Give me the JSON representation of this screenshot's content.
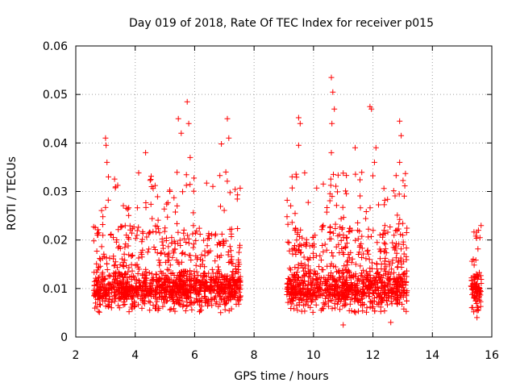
{
  "chart_data": {
    "type": "scatter",
    "title": "Day 019 of 2018, Rate Of TEC Index for receiver p015",
    "xlabel": "GPS time / hours",
    "ylabel": "ROTI / TECUs",
    "xlim": [
      2,
      16
    ],
    "ylim": [
      0,
      0.06
    ],
    "xticks": [
      2,
      4,
      6,
      8,
      10,
      12,
      14,
      16
    ],
    "xtick_labels": [
      "2",
      "4",
      "6",
      "8",
      "10",
      "12",
      "14",
      "16"
    ],
    "yticks": [
      0,
      0.01,
      0.02,
      0.03,
      0.04,
      0.05,
      0.06
    ],
    "ytick_labels": [
      "0",
      "0.01",
      "0.02",
      "0.03",
      "0.04",
      "0.05",
      "0.06"
    ],
    "grid": true,
    "marker": "plus",
    "series_color": "#ff0000",
    "segments": [
      {
        "x_start": 2.6,
        "x_end": 7.55,
        "baseline": 0.009,
        "typical_max": 0.03
      },
      {
        "x_start": 9.1,
        "x_end": 13.15,
        "baseline": 0.009,
        "typical_max": 0.03
      },
      {
        "x_start": 15.3,
        "x_end": 15.65,
        "baseline": 0.009,
        "typical_max": 0.02
      }
    ],
    "highlight_points": [
      {
        "x": 3.0,
        "y": 0.041
      },
      {
        "x": 3.05,
        "y": 0.036
      },
      {
        "x": 3.1,
        "y": 0.033
      },
      {
        "x": 3.02,
        "y": 0.0395
      },
      {
        "x": 4.35,
        "y": 0.038
      },
      {
        "x": 4.55,
        "y": 0.031
      },
      {
        "x": 5.45,
        "y": 0.045
      },
      {
        "x": 5.55,
        "y": 0.042
      },
      {
        "x": 5.75,
        "y": 0.0485
      },
      {
        "x": 5.8,
        "y": 0.044
      },
      {
        "x": 5.85,
        "y": 0.037
      },
      {
        "x": 6.9,
        "y": 0.0398
      },
      {
        "x": 7.1,
        "y": 0.045
      },
      {
        "x": 7.15,
        "y": 0.041
      },
      {
        "x": 7.05,
        "y": 0.034
      },
      {
        "x": 9.5,
        "y": 0.0452
      },
      {
        "x": 9.55,
        "y": 0.044
      },
      {
        "x": 9.5,
        "y": 0.0395
      },
      {
        "x": 10.6,
        "y": 0.0535
      },
      {
        "x": 10.65,
        "y": 0.0505
      },
      {
        "x": 10.7,
        "y": 0.047
      },
      {
        "x": 10.62,
        "y": 0.044
      },
      {
        "x": 10.6,
        "y": 0.038
      },
      {
        "x": 11.4,
        "y": 0.039
      },
      {
        "x": 11.9,
        "y": 0.0475
      },
      {
        "x": 11.95,
        "y": 0.047
      },
      {
        "x": 12.1,
        "y": 0.039
      },
      {
        "x": 12.05,
        "y": 0.036
      },
      {
        "x": 12.9,
        "y": 0.0445
      },
      {
        "x": 12.95,
        "y": 0.0415
      },
      {
        "x": 12.9,
        "y": 0.036
      },
      {
        "x": 15.55,
        "y": 0.022
      },
      {
        "x": 15.6,
        "y": 0.0205
      },
      {
        "x": 15.5,
        "y": 0.004
      },
      {
        "x": 11.0,
        "y": 0.0025
      },
      {
        "x": 12.6,
        "y": 0.003
      }
    ]
  }
}
